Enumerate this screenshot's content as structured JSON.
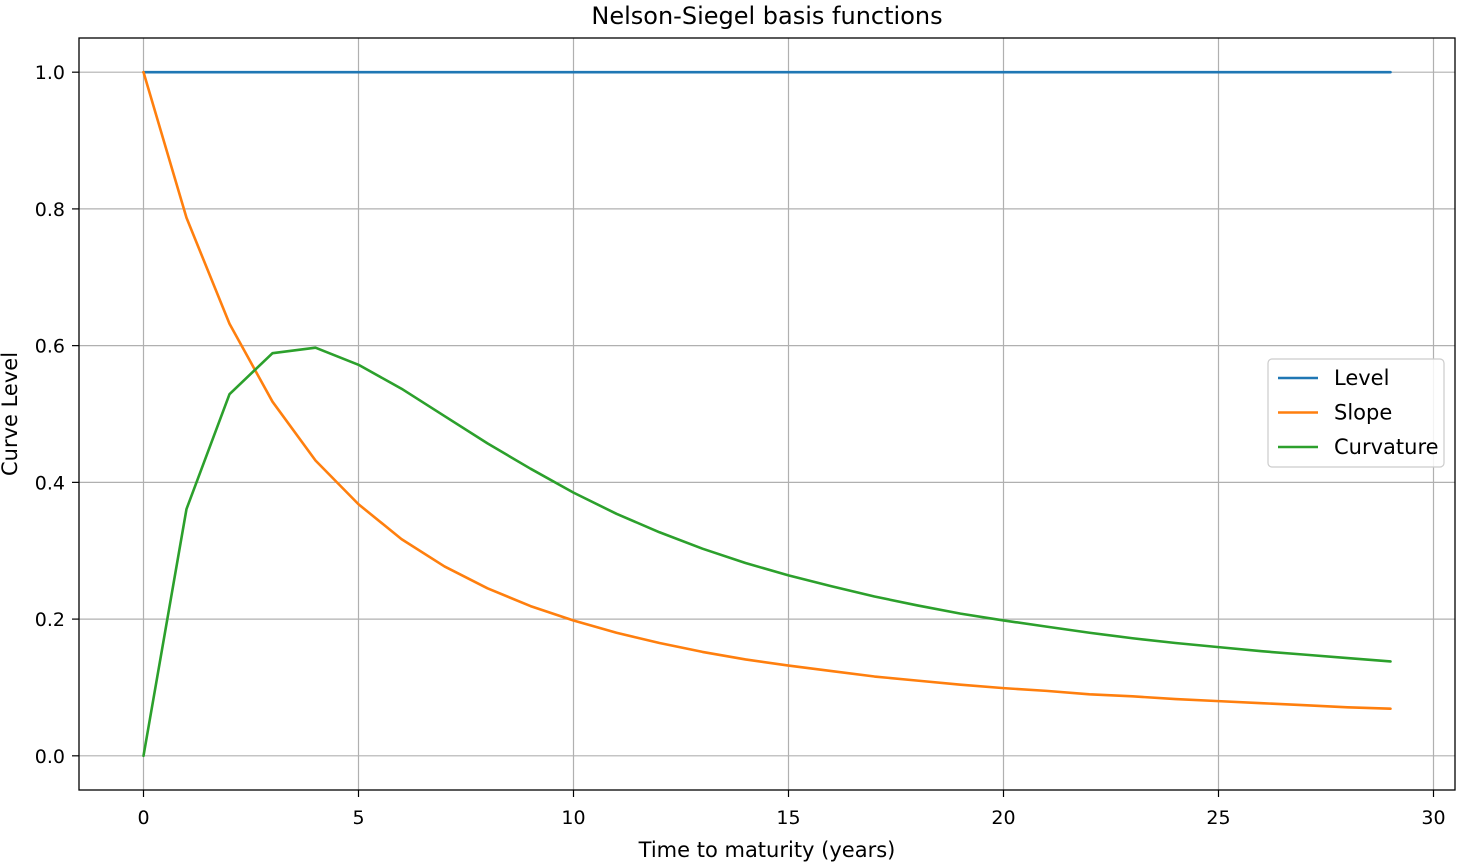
{
  "chart_data": {
    "type": "line",
    "title": "Nelson-Siegel basis functions",
    "xlabel": "Time to maturity (years)",
    "ylabel": "Curve Level",
    "xlim": [
      -1.5,
      30.5
    ],
    "ylim": [
      -0.05,
      1.05
    ],
    "x_ticks": [
      0,
      5,
      10,
      15,
      20,
      25,
      30
    ],
    "x_tick_labels": [
      "0",
      "5",
      "10",
      "15",
      "20",
      "25",
      "30"
    ],
    "y_ticks": [
      0.0,
      0.2,
      0.4,
      0.6,
      0.8,
      1.0
    ],
    "y_tick_labels": [
      "0.0",
      "0.2",
      "0.4",
      "0.6",
      "0.8",
      "1.0"
    ],
    "grid": true,
    "legend_position": "center-right",
    "x": [
      0,
      1,
      2,
      3,
      4,
      5,
      6,
      7,
      8,
      9,
      10,
      11,
      12,
      13,
      14,
      15,
      16,
      17,
      18,
      19,
      20,
      21,
      22,
      23,
      24,
      25,
      26,
      27,
      28,
      29
    ],
    "series": [
      {
        "name": "Level",
        "color": "#1f77b4",
        "values": [
          1,
          1,
          1,
          1,
          1,
          1,
          1,
          1,
          1,
          1,
          1,
          1,
          1,
          1,
          1,
          1,
          1,
          1,
          1,
          1,
          1,
          1,
          1,
          1,
          1,
          1,
          1,
          1,
          1,
          1
        ]
      },
      {
        "name": "Slope",
        "color": "#ff7f0e",
        "values": [
          1.0,
          0.787,
          0.632,
          0.518,
          0.432,
          0.368,
          0.317,
          0.277,
          0.245,
          0.219,
          0.198,
          0.18,
          0.165,
          0.152,
          0.141,
          0.132,
          0.124,
          0.116,
          0.11,
          0.104,
          0.099,
          0.095,
          0.09,
          0.087,
          0.083,
          0.08,
          0.077,
          0.074,
          0.071,
          0.069
        ]
      },
      {
        "name": "Curvature",
        "color": "#2ca02c",
        "values": [
          0.0,
          0.361,
          0.529,
          0.589,
          0.597,
          0.572,
          0.537,
          0.497,
          0.457,
          0.42,
          0.385,
          0.354,
          0.327,
          0.303,
          0.282,
          0.264,
          0.248,
          0.233,
          0.22,
          0.208,
          0.198,
          0.189,
          0.18,
          0.172,
          0.165,
          0.159,
          0.153,
          0.148,
          0.143,
          0.138
        ]
      }
    ]
  }
}
